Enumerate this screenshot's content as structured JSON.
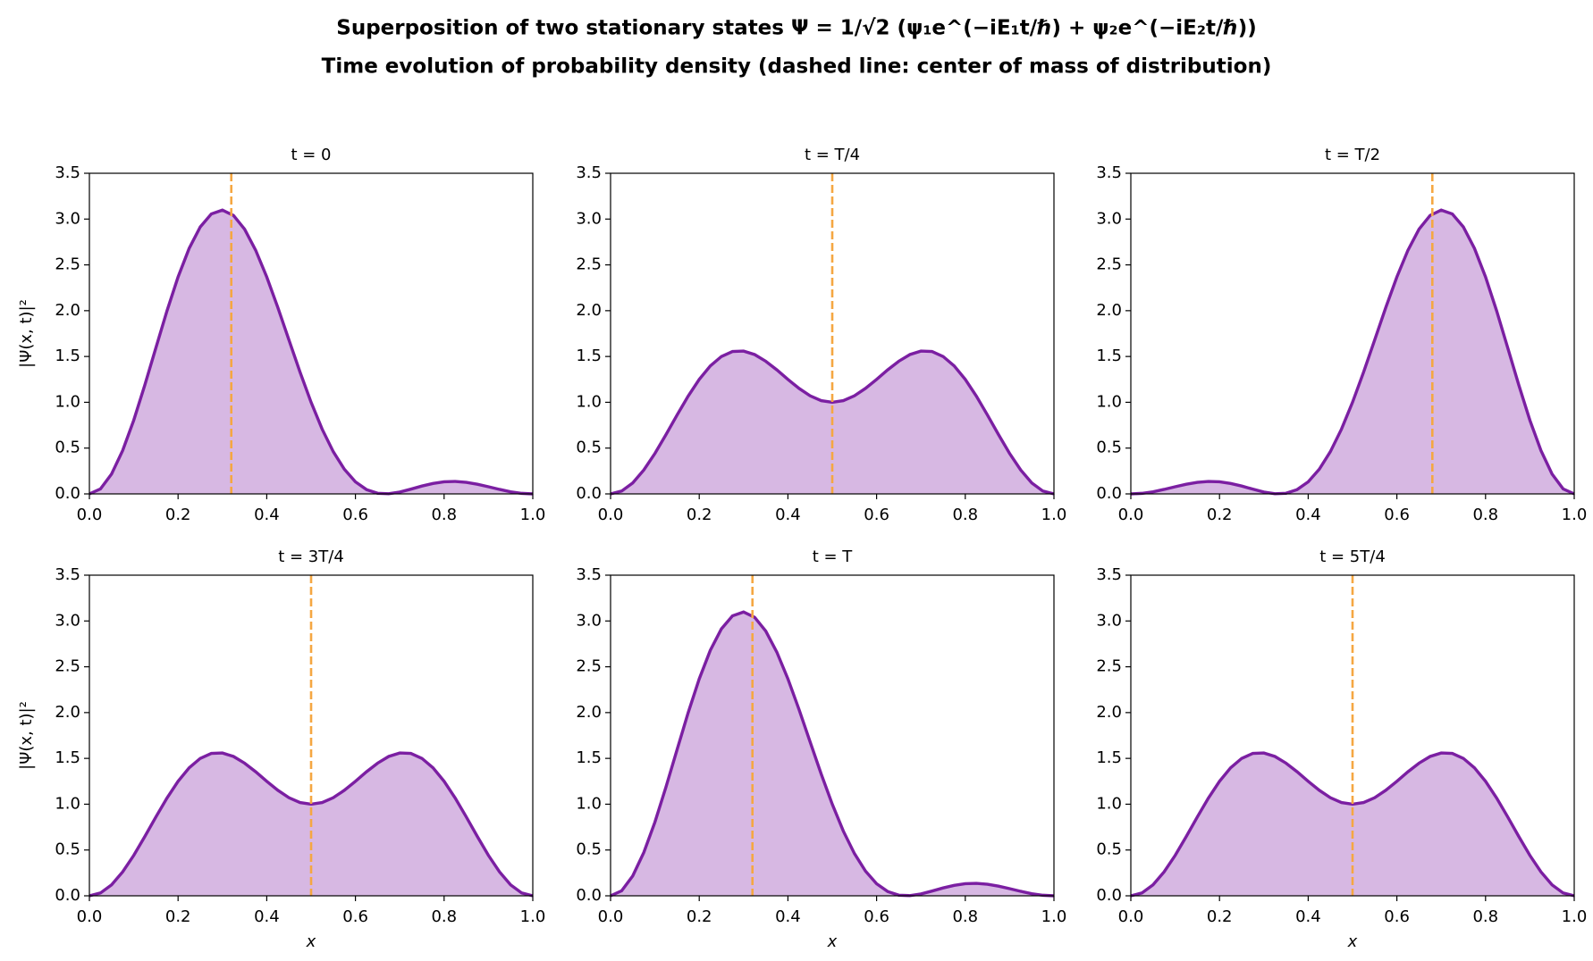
{
  "title": "Superposition of two stationary states Ψ = 1/√2 (ψ₁e^(−iE₁t/ℏ) + ψ₂e^(−iE₂t/ℏ))",
  "subtitle": "Time evolution of probability density (dashed line: center of mass of distribution)",
  "chart_data": [
    {
      "type": "area",
      "title": "t = 0",
      "ylabel": "|Ψ(x, t)|²",
      "x": [
        0,
        0.025,
        0.05,
        0.075,
        0.1,
        0.125,
        0.15,
        0.175,
        0.2,
        0.225,
        0.25,
        0.275,
        0.3,
        0.325,
        0.35,
        0.375,
        0.4,
        0.425,
        0.45,
        0.475,
        0.5,
        0.525,
        0.55,
        0.575,
        0.6,
        0.625,
        0.65,
        0.675,
        0.7,
        0.725,
        0.75,
        0.775,
        0.8,
        0.825,
        0.85,
        0.875,
        0.9,
        0.925,
        0.95,
        0.975,
        1
      ],
      "values": [
        0,
        0.055,
        0.217,
        0.473,
        0.804,
        1.188,
        1.595,
        1.998,
        2.368,
        2.68,
        2.914,
        3.056,
        3.098,
        3.04,
        2.89,
        2.66,
        2.368,
        2.035,
        1.681,
        1.33,
        1,
        0.706,
        0.461,
        0.269,
        0.132,
        0.047,
        0.007,
        0.002,
        0.02,
        0.052,
        0.086,
        0.114,
        0.132,
        0.136,
        0.126,
        0.105,
        0.078,
        0.049,
        0.023,
        0.006,
        0
      ],
      "center": 0.32,
      "color": "#7b1fa2",
      "fill": "#d7b8e3",
      "center_color": "#f5a742",
      "xlim": [
        0,
        1
      ],
      "xticks": [
        {
          "value": 0,
          "label": "0.0"
        },
        0.2,
        0.4,
        0.6,
        0.8,
        {
          "value": 1,
          "label": "1.0"
        }
      ],
      "ylim": [
        0,
        3.5
      ],
      "yticks": [
        {
          "value": 0,
          "label": "0.0"
        },
        0.5,
        {
          "value": 1,
          "label": "1.0"
        },
        1.5,
        {
          "value": 2,
          "label": "2.0"
        },
        2.5,
        {
          "value": 3,
          "label": "3.0"
        },
        3.5
      ]
    },
    {
      "type": "area",
      "title": "t = T/4",
      "x": [
        0,
        0.025,
        0.05,
        0.075,
        0.1,
        0.125,
        0.15,
        0.175,
        0.2,
        0.225,
        0.25,
        0.275,
        0.3,
        0.325,
        0.35,
        0.375,
        0.4,
        0.425,
        0.45,
        0.475,
        0.5,
        0.525,
        0.55,
        0.575,
        0.6,
        0.625,
        0.65,
        0.675,
        0.7,
        0.725,
        0.75,
        0.775,
        0.8,
        0.825,
        0.85,
        0.875,
        0.9,
        0.925,
        0.95,
        0.975,
        1
      ],
      "values": [
        0,
        0.031,
        0.12,
        0.261,
        0.441,
        0.647,
        0.861,
        1.067,
        1.25,
        1.397,
        1.5,
        1.554,
        1.559,
        1.521,
        1.448,
        1.354,
        1.25,
        1.152,
        1.071,
        1.018,
        1,
        1.018,
        1.071,
        1.152,
        1.25,
        1.354,
        1.448,
        1.521,
        1.559,
        1.554,
        1.5,
        1.397,
        1.25,
        1.067,
        0.861,
        0.647,
        0.441,
        0.261,
        0.12,
        0.031,
        0
      ],
      "center": 0.5,
      "color": "#7b1fa2",
      "fill": "#d7b8e3",
      "center_color": "#f5a742",
      "xlim": [
        0,
        1
      ],
      "xticks": [
        {
          "value": 0,
          "label": "0.0"
        },
        0.2,
        0.4,
        0.6,
        0.8,
        {
          "value": 1,
          "label": "1.0"
        }
      ],
      "ylim": [
        0,
        3.5
      ],
      "yticks": [
        {
          "value": 0,
          "label": "0.0"
        },
        0.5,
        {
          "value": 1,
          "label": "1.0"
        },
        1.5,
        {
          "value": 2,
          "label": "2.0"
        },
        2.5,
        {
          "value": 3,
          "label": "3.0"
        },
        3.5
      ]
    },
    {
      "type": "area",
      "title": "t = T/2",
      "x": [
        0,
        0.025,
        0.05,
        0.075,
        0.1,
        0.125,
        0.15,
        0.175,
        0.2,
        0.225,
        0.25,
        0.275,
        0.3,
        0.325,
        0.35,
        0.375,
        0.4,
        0.425,
        0.45,
        0.475,
        0.5,
        0.525,
        0.55,
        0.575,
        0.6,
        0.625,
        0.65,
        0.675,
        0.7,
        0.725,
        0.75,
        0.775,
        0.8,
        0.825,
        0.85,
        0.875,
        0.9,
        0.925,
        0.95,
        0.975,
        1
      ],
      "values": [
        0,
        0.006,
        0.023,
        0.049,
        0.078,
        0.105,
        0.126,
        0.136,
        0.132,
        0.114,
        0.086,
        0.052,
        0.02,
        0.002,
        0.007,
        0.047,
        0.132,
        0.269,
        0.461,
        0.706,
        1,
        1.33,
        1.681,
        2.035,
        2.368,
        2.66,
        2.89,
        3.04,
        3.098,
        3.056,
        2.914,
        2.68,
        2.368,
        1.998,
        1.595,
        1.188,
        0.804,
        0.473,
        0.217,
        0.055,
        0
      ],
      "center": 0.68,
      "color": "#7b1fa2",
      "fill": "#d7b8e3",
      "center_color": "#f5a742",
      "xlim": [
        0,
        1
      ],
      "xticks": [
        {
          "value": 0,
          "label": "0.0"
        },
        0.2,
        0.4,
        0.6,
        0.8,
        {
          "value": 1,
          "label": "1.0"
        }
      ],
      "ylim": [
        0,
        3.5
      ],
      "yticks": [
        {
          "value": 0,
          "label": "0.0"
        },
        0.5,
        {
          "value": 1,
          "label": "1.0"
        },
        1.5,
        {
          "value": 2,
          "label": "2.0"
        },
        2.5,
        {
          "value": 3,
          "label": "3.0"
        },
        3.5
      ]
    },
    {
      "type": "area",
      "title": "t = 3T/4",
      "ylabel": "|Ψ(x, t)|²",
      "xlabel": "x",
      "x": [
        0,
        0.025,
        0.05,
        0.075,
        0.1,
        0.125,
        0.15,
        0.175,
        0.2,
        0.225,
        0.25,
        0.275,
        0.3,
        0.325,
        0.35,
        0.375,
        0.4,
        0.425,
        0.45,
        0.475,
        0.5,
        0.525,
        0.55,
        0.575,
        0.6,
        0.625,
        0.65,
        0.675,
        0.7,
        0.725,
        0.75,
        0.775,
        0.8,
        0.825,
        0.85,
        0.875,
        0.9,
        0.925,
        0.95,
        0.975,
        1
      ],
      "values": [
        0,
        0.031,
        0.12,
        0.261,
        0.441,
        0.647,
        0.861,
        1.067,
        1.25,
        1.397,
        1.5,
        1.554,
        1.559,
        1.521,
        1.448,
        1.354,
        1.25,
        1.152,
        1.071,
        1.018,
        1,
        1.018,
        1.071,
        1.152,
        1.25,
        1.354,
        1.448,
        1.521,
        1.559,
        1.554,
        1.5,
        1.397,
        1.25,
        1.067,
        0.861,
        0.647,
        0.441,
        0.261,
        0.12,
        0.031,
        0
      ],
      "center": 0.5,
      "color": "#7b1fa2",
      "fill": "#d7b8e3",
      "center_color": "#f5a742",
      "xlim": [
        0,
        1
      ],
      "xticks": [
        {
          "value": 0,
          "label": "0.0"
        },
        0.2,
        0.4,
        0.6,
        0.8,
        {
          "value": 1,
          "label": "1.0"
        }
      ],
      "ylim": [
        0,
        3.5
      ],
      "yticks": [
        {
          "value": 0,
          "label": "0.0"
        },
        0.5,
        {
          "value": 1,
          "label": "1.0"
        },
        1.5,
        {
          "value": 2,
          "label": "2.0"
        },
        2.5,
        {
          "value": 3,
          "label": "3.0"
        },
        3.5
      ]
    },
    {
      "type": "area",
      "title": "t = T",
      "xlabel": "x",
      "x": [
        0,
        0.025,
        0.05,
        0.075,
        0.1,
        0.125,
        0.15,
        0.175,
        0.2,
        0.225,
        0.25,
        0.275,
        0.3,
        0.325,
        0.35,
        0.375,
        0.4,
        0.425,
        0.45,
        0.475,
        0.5,
        0.525,
        0.55,
        0.575,
        0.6,
        0.625,
        0.65,
        0.675,
        0.7,
        0.725,
        0.75,
        0.775,
        0.8,
        0.825,
        0.85,
        0.875,
        0.9,
        0.925,
        0.95,
        0.975,
        1
      ],
      "values": [
        0,
        0.055,
        0.217,
        0.473,
        0.804,
        1.188,
        1.595,
        1.998,
        2.368,
        2.68,
        2.914,
        3.056,
        3.098,
        3.04,
        2.89,
        2.66,
        2.368,
        2.035,
        1.681,
        1.33,
        1,
        0.706,
        0.461,
        0.269,
        0.132,
        0.047,
        0.007,
        0.002,
        0.02,
        0.052,
        0.086,
        0.114,
        0.132,
        0.136,
        0.126,
        0.105,
        0.078,
        0.049,
        0.023,
        0.006,
        0
      ],
      "center": 0.32,
      "color": "#7b1fa2",
      "fill": "#d7b8e3",
      "center_color": "#f5a742",
      "xlim": [
        0,
        1
      ],
      "xticks": [
        {
          "value": 0,
          "label": "0.0"
        },
        0.2,
        0.4,
        0.6,
        0.8,
        {
          "value": 1,
          "label": "1.0"
        }
      ],
      "ylim": [
        0,
        3.5
      ],
      "yticks": [
        {
          "value": 0,
          "label": "0.0"
        },
        0.5,
        {
          "value": 1,
          "label": "1.0"
        },
        1.5,
        {
          "value": 2,
          "label": "2.0"
        },
        2.5,
        {
          "value": 3,
          "label": "3.0"
        },
        3.5
      ]
    },
    {
      "type": "area",
      "title": "t = 5T/4",
      "xlabel": "x",
      "x": [
        0,
        0.025,
        0.05,
        0.075,
        0.1,
        0.125,
        0.15,
        0.175,
        0.2,
        0.225,
        0.25,
        0.275,
        0.3,
        0.325,
        0.35,
        0.375,
        0.4,
        0.425,
        0.45,
        0.475,
        0.5,
        0.525,
        0.55,
        0.575,
        0.6,
        0.625,
        0.65,
        0.675,
        0.7,
        0.725,
        0.75,
        0.775,
        0.8,
        0.825,
        0.85,
        0.875,
        0.9,
        0.925,
        0.95,
        0.975,
        1
      ],
      "values": [
        0,
        0.031,
        0.12,
        0.261,
        0.441,
        0.647,
        0.861,
        1.067,
        1.25,
        1.397,
        1.5,
        1.554,
        1.559,
        1.521,
        1.448,
        1.354,
        1.25,
        1.152,
        1.071,
        1.018,
        1,
        1.018,
        1.071,
        1.152,
        1.25,
        1.354,
        1.448,
        1.521,
        1.559,
        1.554,
        1.5,
        1.397,
        1.25,
        1.067,
        0.861,
        0.647,
        0.441,
        0.261,
        0.12,
        0.031,
        0
      ],
      "center": 0.5,
      "color": "#7b1fa2",
      "fill": "#d7b8e3",
      "center_color": "#f5a742",
      "xlim": [
        0,
        1
      ],
      "xticks": [
        {
          "value": 0,
          "label": "0.0"
        },
        0.2,
        0.4,
        0.6,
        0.8,
        {
          "value": 1,
          "label": "1.0"
        }
      ],
      "ylim": [
        0,
        3.5
      ],
      "yticks": [
        {
          "value": 0,
          "label": "0.0"
        },
        0.5,
        {
          "value": 1,
          "label": "1.0"
        },
        1.5,
        {
          "value": 2,
          "label": "2.0"
        },
        2.5,
        {
          "value": 3,
          "label": "3.0"
        },
        3.5
      ]
    }
  ]
}
